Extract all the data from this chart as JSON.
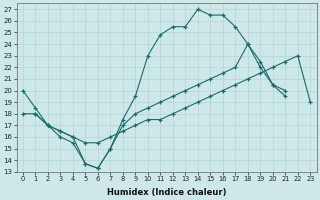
{
  "xlabel": "Humidex (Indice chaleur)",
  "xlim": [
    -0.5,
    23.5
  ],
  "ylim": [
    13,
    27.5
  ],
  "xticks": [
    0,
    1,
    2,
    3,
    4,
    5,
    6,
    7,
    8,
    9,
    10,
    11,
    12,
    13,
    14,
    15,
    16,
    17,
    18,
    19,
    20,
    21,
    22,
    23
  ],
  "yticks": [
    13,
    14,
    15,
    16,
    17,
    18,
    19,
    20,
    21,
    22,
    23,
    24,
    25,
    26,
    27
  ],
  "bg_color": "#cde8e8",
  "line_color": "#1a6b6b",
  "line1_x": [
    0,
    1,
    2,
    3,
    4,
    5,
    6,
    7,
    8,
    9,
    10,
    11,
    12,
    13,
    14,
    15,
    16,
    17,
    18,
    19,
    20,
    21
  ],
  "line1_y": [
    20.0,
    18.5,
    17.0,
    16.0,
    15.5,
    13.7,
    13.3,
    15.0,
    17.5,
    19.5,
    23.0,
    24.8,
    25.5,
    25.5,
    27.0,
    26.5,
    26.5,
    25.5,
    24.0,
    22.0,
    20.5,
    19.5
  ],
  "line2_x": [
    0,
    1,
    2,
    3,
    4,
    5,
    6,
    7,
    8,
    9,
    10,
    11,
    12,
    13,
    14,
    15,
    16,
    17,
    18,
    19,
    20,
    21,
    22,
    23
  ],
  "line2_y": [
    18.0,
    18.0,
    17.0,
    16.5,
    16.0,
    15.5,
    15.5,
    16.0,
    16.5,
    17.0,
    17.5,
    17.5,
    18.0,
    18.5,
    19.0,
    19.5,
    20.0,
    20.5,
    21.0,
    21.5,
    22.0,
    22.5,
    23.0,
    19.0
  ],
  "line3_x": [
    1,
    2,
    3,
    4,
    5,
    6,
    7,
    8,
    9,
    10,
    11,
    12,
    13,
    14,
    15,
    16,
    17,
    18,
    19,
    20,
    21
  ],
  "line3_y": [
    18.0,
    17.0,
    16.5,
    16.0,
    13.7,
    13.3,
    15.0,
    17.0,
    18.0,
    18.5,
    19.0,
    19.5,
    20.0,
    20.5,
    21.0,
    21.5,
    22.0,
    24.0,
    22.5,
    20.5,
    20.0
  ]
}
